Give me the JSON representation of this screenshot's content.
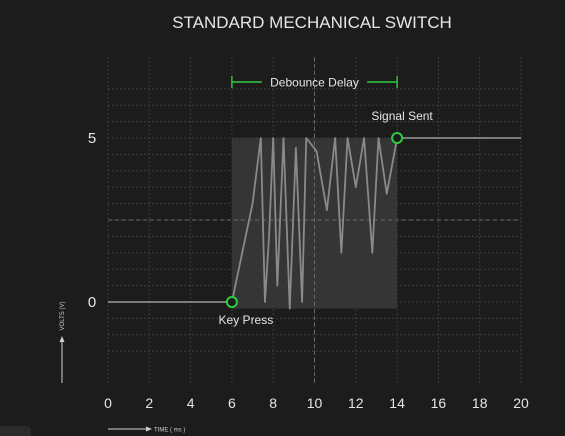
{
  "chart_data": {
    "type": "line",
    "title": "STANDARD MECHANICAL SWITCH",
    "xlabel": "TIME ( ms )",
    "ylabel": "VOLTS (V)",
    "xlim": [
      0,
      20
    ],
    "ylim": [
      -2,
      6.5
    ],
    "x_ticks": [
      "0",
      "2",
      "4",
      "6",
      "8",
      "10",
      "12",
      "14",
      "16",
      "18",
      "20"
    ],
    "y_ticks": [
      {
        "value": 0,
        "label": "0"
      },
      {
        "value": 5,
        "label": "5"
      }
    ],
    "grid": true,
    "series": [
      {
        "color": "#8a8a8a",
        "x": [
          0,
          6,
          7.0,
          7.4,
          7.6,
          7.8,
          8.0,
          8.2,
          8.5,
          8.8,
          9.1,
          9.4,
          9.6,
          10.1,
          10.6,
          11.0,
          11.3,
          11.6,
          12.0,
          12.4,
          12.8,
          13.1,
          13.5,
          14,
          20
        ],
        "y": [
          0,
          0,
          3.0,
          5.0,
          0.0,
          2.0,
          5.0,
          0.5,
          5.0,
          -0.2,
          4.7,
          0.0,
          5.0,
          4.6,
          2.8,
          5.0,
          1.5,
          5.0,
          3.5,
          5.0,
          1.5,
          5.0,
          3.3,
          5,
          5
        ]
      }
    ],
    "shaded_region": {
      "x": [
        6,
        14
      ],
      "y": [
        -0.2,
        5
      ]
    },
    "dashed_guides": {
      "x": 10,
      "y": 2.5
    },
    "annotations": [
      {
        "text": "Key Press",
        "x": 6,
        "y": 0,
        "position": "below"
      },
      {
        "text": "Signal Sent",
        "x": 14,
        "y": 5,
        "position": "above"
      },
      {
        "text": "Debounce Delay",
        "x_range": [
          6,
          14
        ],
        "y": 6.7,
        "color": "#2ecc40"
      }
    ],
    "colors": {
      "background": "#1c1c1c",
      "grid": "#3c3c3c",
      "text": "#e6e6e6",
      "accent": "#2ecc40",
      "shade": "#3a3a3a"
    }
  }
}
